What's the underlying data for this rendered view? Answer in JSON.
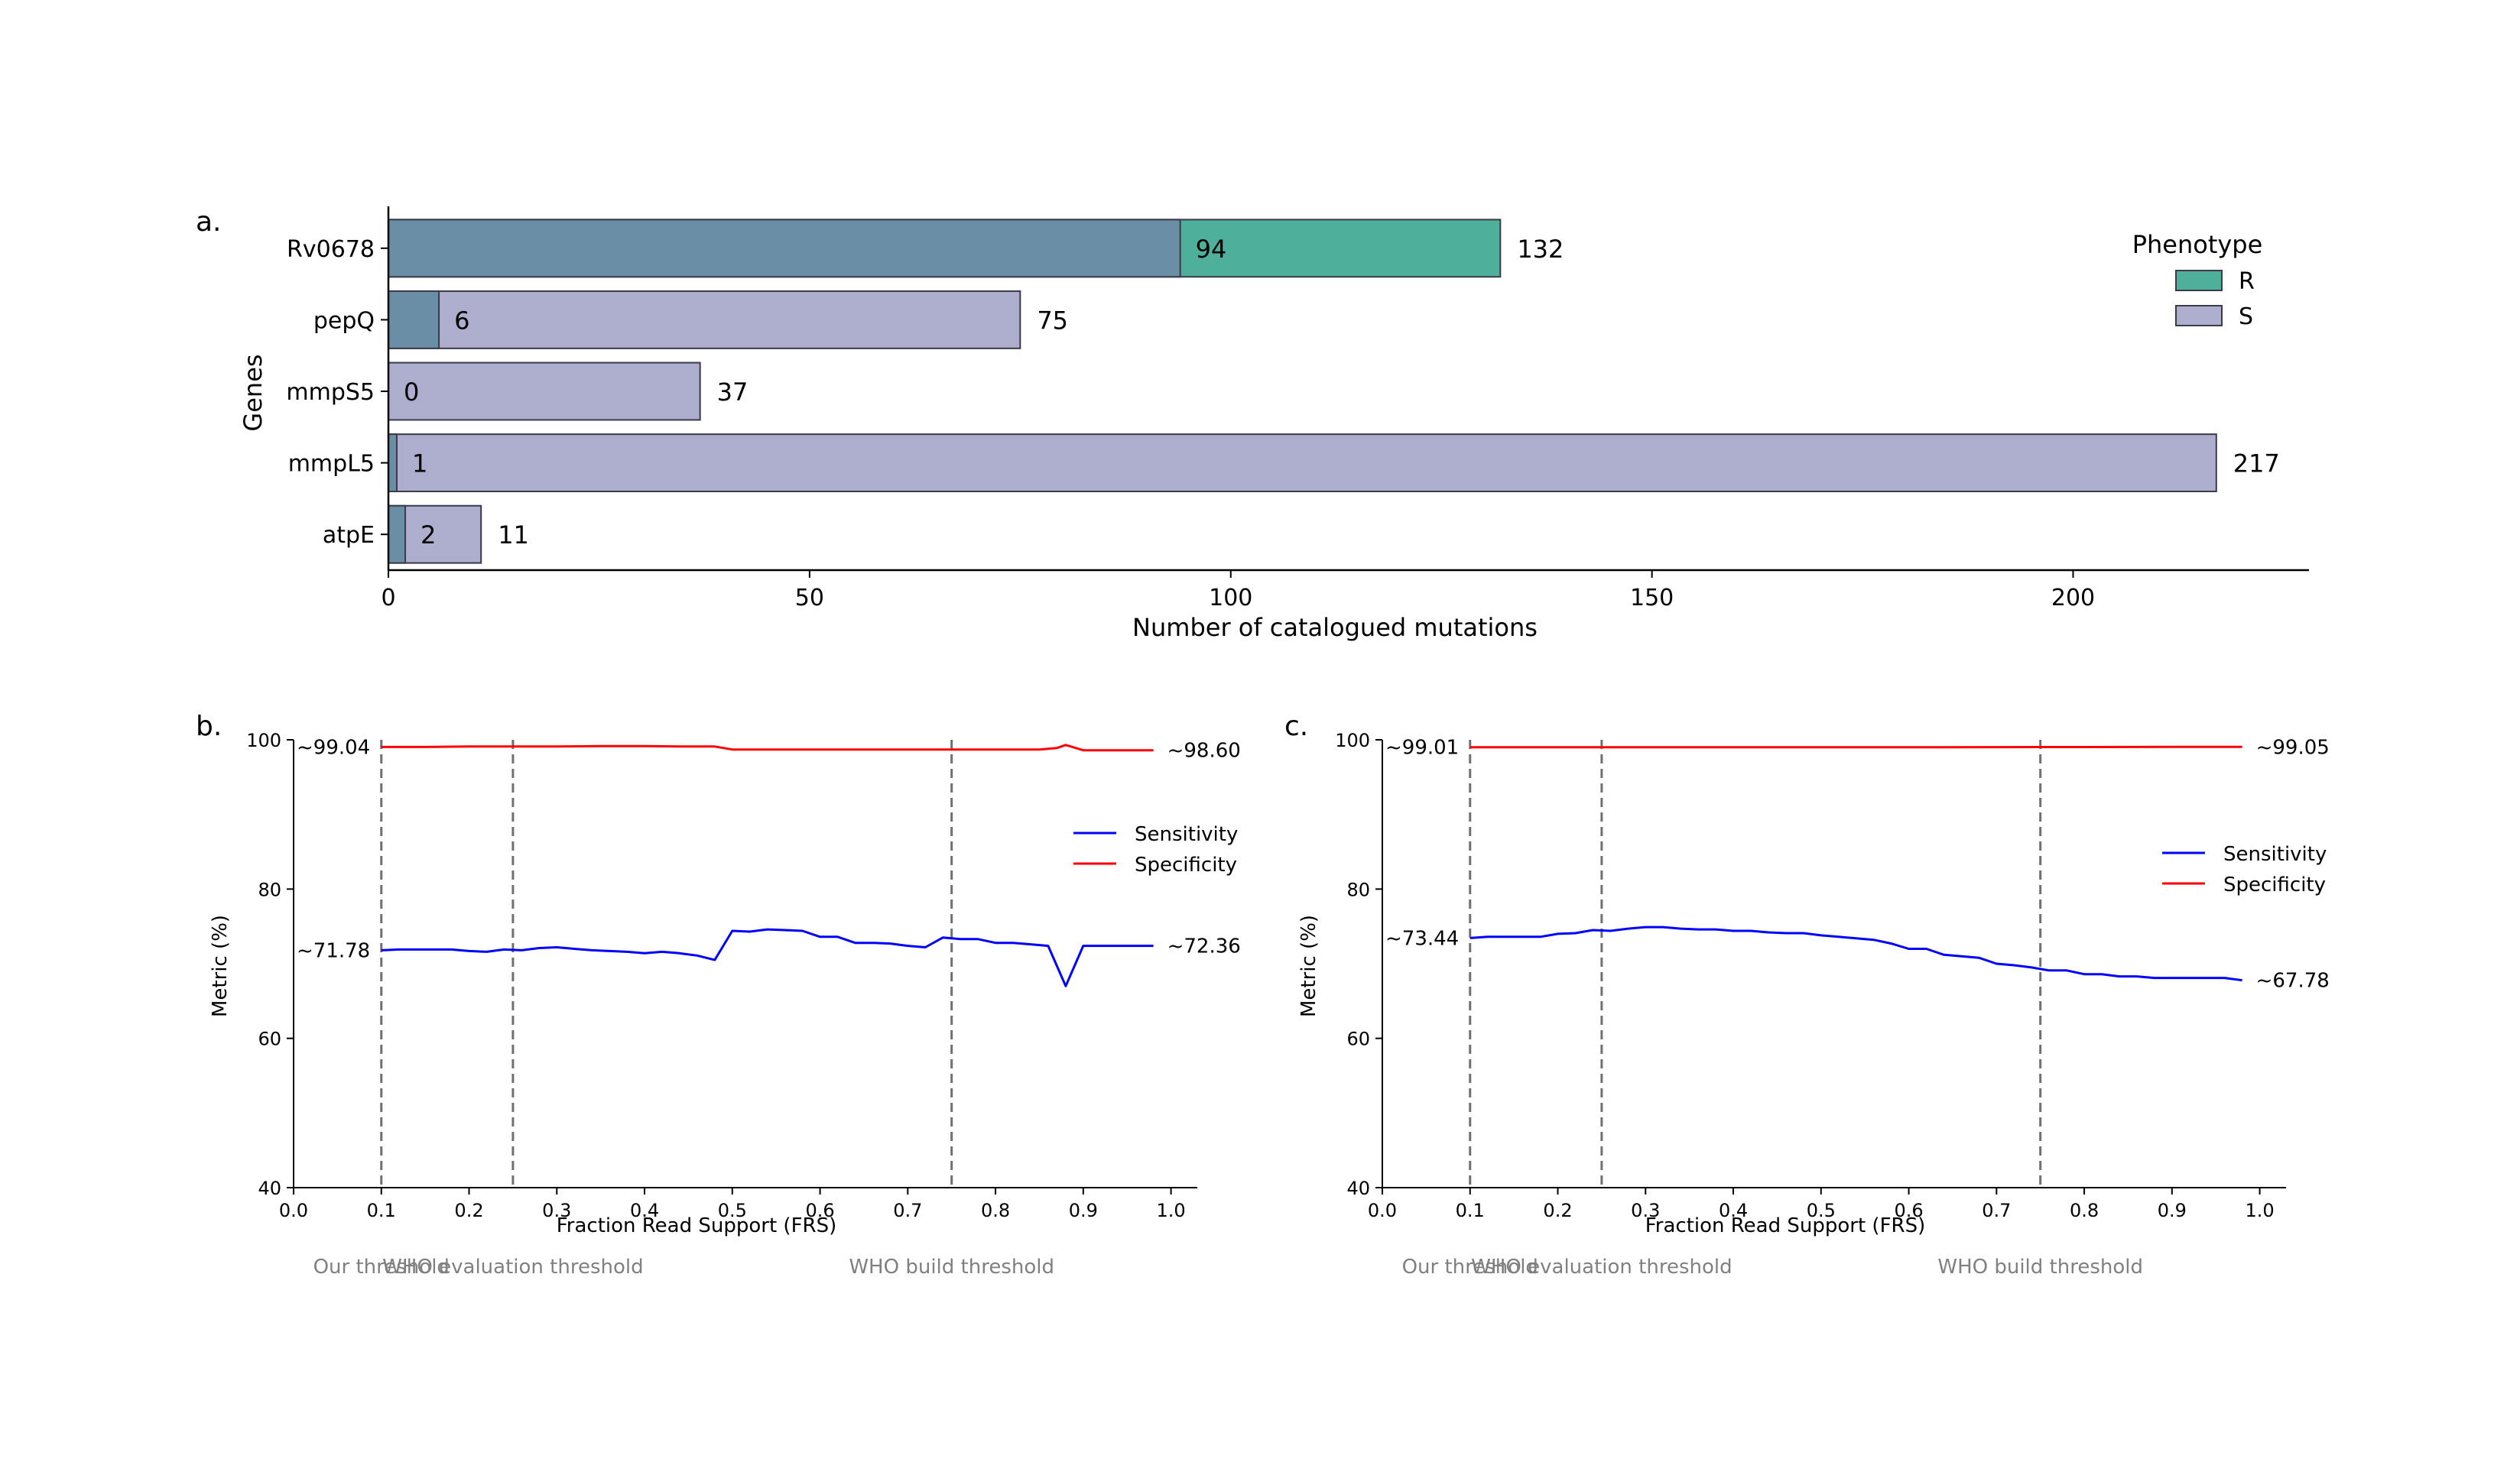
{
  "chart_data": [
    {
      "panel": "a.",
      "type": "bar",
      "orientation": "horizontal",
      "stacked": true,
      "categories": [
        "Rv0678",
        "pepQ",
        "mmpS5",
        "mmpL5",
        "atpE"
      ],
      "series": [
        {
          "name": "R",
          "values": [
            94,
            6,
            0,
            1,
            2
          ],
          "labels": [
            "94",
            "6",
            "0",
            "1",
            "2"
          ]
        },
        {
          "name": "S",
          "values": [
            38,
            69,
            37,
            216,
            9
          ]
        }
      ],
      "totals": [
        132,
        75,
        37,
        217,
        11
      ],
      "total_labels": [
        "132",
        "75",
        "37",
        "217",
        "11"
      ],
      "xlabel": "Number of catalogued mutations",
      "ylabel": "Genes",
      "xlim": [
        0,
        228
      ],
      "xticks": [
        0,
        50,
        100,
        150,
        200
      ],
      "xtick_labels": [
        "0",
        "50",
        "100",
        "150",
        "200"
      ],
      "legend": {
        "title": "Phenotype",
        "position": "top-right",
        "entries": [
          "R",
          "S"
        ]
      },
      "colors": {
        "R": "#4eb09a",
        "S": "#adadcd",
        "overlap": "#6a8ea5",
        "edge": "#3a3a4a"
      }
    },
    {
      "panel": "b.",
      "type": "line",
      "xlabel": "Fraction Read Support (FRS)",
      "ylabel": "Metric (%)",
      "xlim": [
        0,
        1.03
      ],
      "ylim": [
        40,
        100
      ],
      "xticks": [
        0.0,
        0.1,
        0.2,
        0.3,
        0.4,
        0.5,
        0.6,
        0.7,
        0.8,
        0.9,
        1.0
      ],
      "xtick_labels": [
        "0.0",
        "0.1",
        "0.2",
        "0.3",
        "0.4",
        "0.5",
        "0.6",
        "0.7",
        "0.8",
        "0.9",
        "1.0"
      ],
      "yticks": [
        40,
        60,
        80,
        100
      ],
      "ytick_labels": [
        "40",
        "60",
        "80",
        "100"
      ],
      "legend_position": "right",
      "vlines": [
        {
          "x": 0.1,
          "label": "Our threshold"
        },
        {
          "x": 0.25,
          "label": "WHO evaluation threshold"
        },
        {
          "x": 0.75,
          "label": "WHO build threshold"
        }
      ],
      "series": [
        {
          "name": "Sensitivity",
          "color": "#0000ff",
          "x": [
            0.1,
            0.12,
            0.14,
            0.16,
            0.18,
            0.2,
            0.22,
            0.24,
            0.26,
            0.28,
            0.3,
            0.32,
            0.34,
            0.36,
            0.38,
            0.4,
            0.42,
            0.44,
            0.46,
            0.48,
            0.5,
            0.52,
            0.54,
            0.56,
            0.58,
            0.6,
            0.62,
            0.64,
            0.66,
            0.68,
            0.7,
            0.72,
            0.74,
            0.76,
            0.78,
            0.8,
            0.82,
            0.84,
            0.86,
            0.88,
            0.9,
            0.92,
            0.94,
            0.96,
            0.98
          ],
          "y": [
            71.8,
            71.9,
            71.9,
            71.9,
            71.9,
            71.7,
            71.6,
            71.9,
            71.8,
            72.1,
            72.2,
            72.0,
            71.8,
            71.7,
            71.6,
            71.4,
            71.6,
            71.4,
            71.1,
            70.5,
            74.4,
            74.3,
            74.6,
            74.5,
            74.4,
            73.6,
            73.6,
            72.8,
            72.8,
            72.7,
            72.4,
            72.2,
            73.5,
            73.3,
            73.3,
            72.8,
            72.8,
            72.6,
            72.4,
            67.0,
            72.4,
            72.4,
            72.4,
            72.4,
            72.4
          ],
          "start_label": "~71.78",
          "end_label": "~72.36"
        },
        {
          "name": "Specificity",
          "color": "#ff0000",
          "x": [
            0.1,
            0.15,
            0.2,
            0.25,
            0.3,
            0.35,
            0.4,
            0.45,
            0.48,
            0.5,
            0.55,
            0.6,
            0.65,
            0.7,
            0.75,
            0.8,
            0.85,
            0.87,
            0.88,
            0.9,
            0.95,
            0.98
          ],
          "y": [
            99.04,
            99.04,
            99.1,
            99.1,
            99.1,
            99.15,
            99.15,
            99.1,
            99.1,
            98.7,
            98.7,
            98.7,
            98.7,
            98.7,
            98.7,
            98.7,
            98.7,
            98.9,
            99.3,
            98.6,
            98.6,
            98.6
          ],
          "start_label": "~99.04",
          "end_label": "~98.60"
        }
      ]
    },
    {
      "panel": "c.",
      "type": "line",
      "xlabel": "Fraction Read Support (FRS)",
      "ylabel": "Metric (%)",
      "xlim": [
        0,
        1.03
      ],
      "ylim": [
        40,
        100
      ],
      "xticks": [
        0.0,
        0.1,
        0.2,
        0.3,
        0.4,
        0.5,
        0.6,
        0.7,
        0.8,
        0.9,
        1.0
      ],
      "xtick_labels": [
        "0.0",
        "0.1",
        "0.2",
        "0.3",
        "0.4",
        "0.5",
        "0.6",
        "0.7",
        "0.8",
        "0.9",
        "1.0"
      ],
      "yticks": [
        40,
        60,
        80,
        100
      ],
      "ytick_labels": [
        "40",
        "60",
        "80",
        "100"
      ],
      "legend_position": "right",
      "vlines": [
        {
          "x": 0.1,
          "label": "Our threshold"
        },
        {
          "x": 0.25,
          "label": "WHO evaluation threshold"
        },
        {
          "x": 0.75,
          "label": "WHO build threshold"
        }
      ],
      "series": [
        {
          "name": "Sensitivity",
          "color": "#0000ff",
          "x": [
            0.1,
            0.12,
            0.14,
            0.16,
            0.18,
            0.2,
            0.22,
            0.24,
            0.26,
            0.28,
            0.3,
            0.32,
            0.34,
            0.36,
            0.38,
            0.4,
            0.42,
            0.44,
            0.46,
            0.48,
            0.5,
            0.52,
            0.54,
            0.56,
            0.58,
            0.6,
            0.62,
            0.64,
            0.66,
            0.68,
            0.7,
            0.72,
            0.74,
            0.76,
            0.78,
            0.8,
            0.82,
            0.84,
            0.86,
            0.88,
            0.9,
            0.92,
            0.94,
            0.96,
            0.98
          ],
          "y": [
            73.44,
            73.6,
            73.6,
            73.6,
            73.6,
            74.0,
            74.1,
            74.5,
            74.4,
            74.7,
            74.9,
            74.9,
            74.7,
            74.6,
            74.6,
            74.4,
            74.4,
            74.2,
            74.1,
            74.1,
            73.8,
            73.6,
            73.4,
            73.2,
            72.7,
            72.0,
            72.0,
            71.2,
            71.0,
            70.8,
            70.0,
            69.8,
            69.5,
            69.1,
            69.1,
            68.6,
            68.6,
            68.3,
            68.3,
            68.1,
            68.1,
            68.1,
            68.1,
            68.1,
            67.78
          ],
          "start_label": "~73.44",
          "end_label": "~67.78"
        },
        {
          "name": "Specificity",
          "color": "#ff0000",
          "x": [
            0.1,
            0.2,
            0.3,
            0.4,
            0.5,
            0.6,
            0.7,
            0.8,
            0.9,
            0.98
          ],
          "y": [
            99.01,
            99.0,
            99.0,
            99.0,
            99.0,
            99.0,
            99.02,
            99.03,
            99.05,
            99.05
          ],
          "start_label": "~99.01",
          "end_label": "~99.05"
        }
      ]
    }
  ]
}
